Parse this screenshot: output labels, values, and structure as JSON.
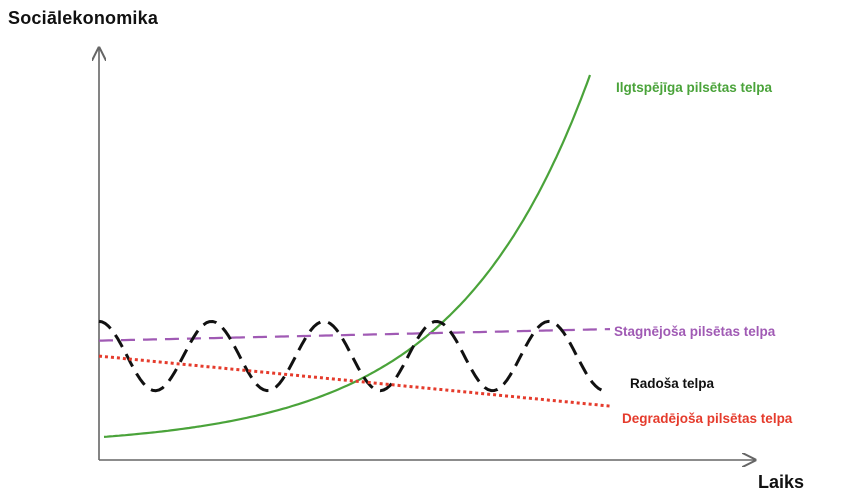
{
  "chart_data": {
    "type": "line",
    "title": "",
    "xlabel": "Laiks",
    "ylabel": "Sociālekonomika",
    "grid": false,
    "legend": "direct labels at right end of each line",
    "series": [
      {
        "name": "Ilgtspējīga pilsētas telpa",
        "color": "#4aa33a",
        "style": "solid",
        "shape": "exponential rise",
        "start": 0.06,
        "end": 1.0
      },
      {
        "name": "Stagnējoša pilsētas telpa",
        "color": "#a05ab4",
        "style": "dashed",
        "shape": "slight rise",
        "start": 0.31,
        "end": 0.34
      },
      {
        "name": "Radoša telpa",
        "color": "#111111",
        "style": "dashed",
        "shape": "oscillation",
        "oscillations": 4.5,
        "center": 0.27,
        "amplitude": 0.09
      },
      {
        "name": "Degradējoša pilsētas telpa",
        "color": "#e53b2c",
        "style": "dotted",
        "shape": "decline",
        "start": 0.27,
        "end": 0.14
      }
    ]
  }
}
